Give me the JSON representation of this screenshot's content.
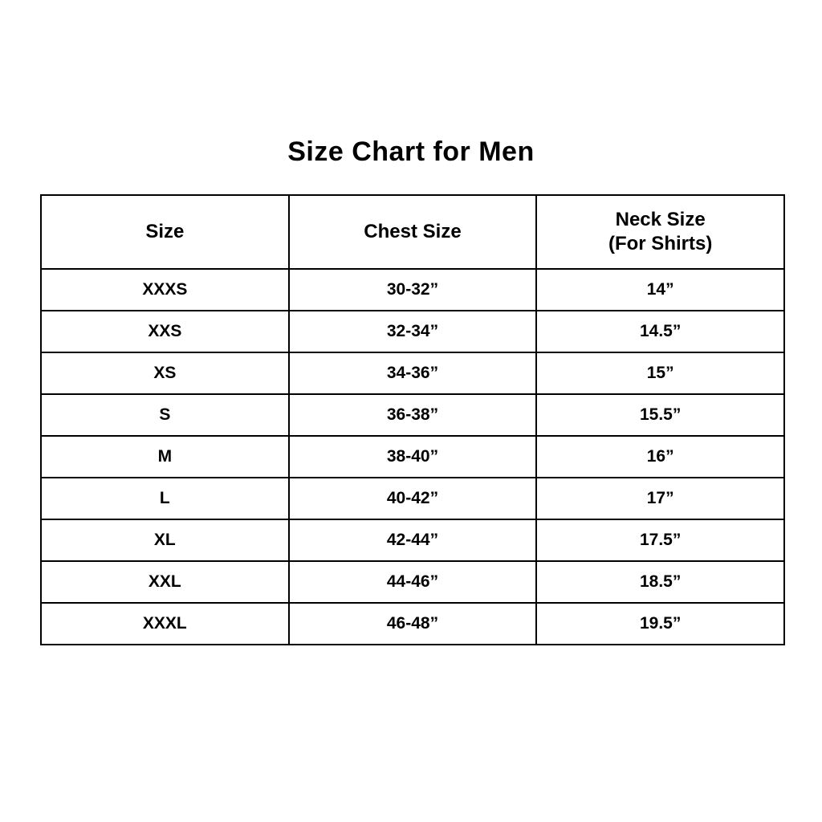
{
  "page": {
    "title": "Size Chart for Men"
  },
  "colors": {
    "background": "#ffffff",
    "text": "#000000",
    "border": "#000000"
  },
  "table": {
    "headers": [
      {
        "line1": "Size",
        "line2": ""
      },
      {
        "line1": "Chest Size",
        "line2": ""
      },
      {
        "line1": "Neck Size",
        "line2": "(For Shirts)"
      }
    ]
  },
  "chart_data": {
    "type": "table",
    "title": "Size Chart for Men",
    "columns": [
      "Size",
      "Chest Size",
      "Neck Size (For Shirts)"
    ],
    "rows": [
      [
        "XXXS",
        "30-32”",
        "14”"
      ],
      [
        "XXS",
        "32-34”",
        "14.5”"
      ],
      [
        "XS",
        "34-36”",
        "15”"
      ],
      [
        "S",
        "36-38”",
        "15.5”"
      ],
      [
        "M",
        "38-40”",
        "16”"
      ],
      [
        "L",
        "40-42”",
        "17”"
      ],
      [
        "XL",
        "42-44”",
        "17.5”"
      ],
      [
        "XXL",
        "44-46”",
        "18.5”"
      ],
      [
        "XXXL",
        "46-48”",
        "19.5”"
      ]
    ]
  }
}
